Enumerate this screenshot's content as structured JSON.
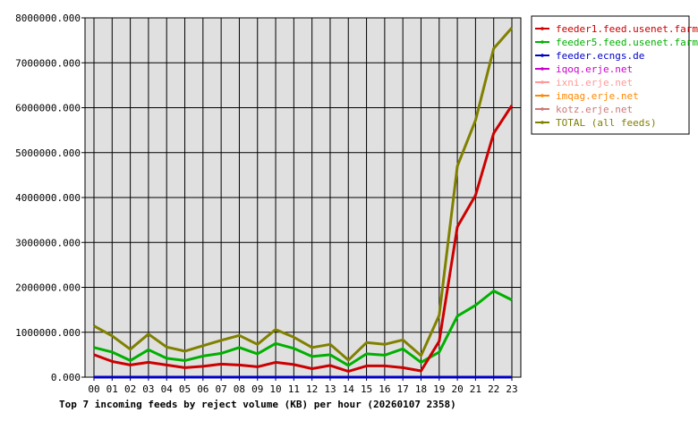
{
  "chart_data": {
    "type": "line",
    "title": "Top 7 incoming feeds by reject volume (KB) per hour (20260107 2358)",
    "xlabel": "",
    "ylabel": "",
    "categories": [
      "00",
      "01",
      "02",
      "03",
      "04",
      "05",
      "06",
      "07",
      "08",
      "09",
      "10",
      "11",
      "12",
      "13",
      "14",
      "15",
      "16",
      "17",
      "18",
      "19",
      "20",
      "21",
      "22",
      "23"
    ],
    "ylim": [
      0,
      8000000
    ],
    "yticks": [
      "0.000",
      "1000000.000",
      "2000000.000",
      "3000000.000",
      "4000000.000",
      "5000000.000",
      "6000000.000",
      "7000000.000",
      "8000000.000"
    ],
    "grid": true,
    "legend_position": "top-right",
    "series": [
      {
        "name": "feeder1.feed.usenet.farm",
        "color": "#cc0000",
        "values": [
          500000,
          350000,
          270000,
          330000,
          270000,
          210000,
          240000,
          290000,
          270000,
          230000,
          330000,
          280000,
          190000,
          260000,
          130000,
          250000,
          250000,
          210000,
          140000,
          800000,
          3350000,
          4050000,
          5430000,
          6050000
        ]
      },
      {
        "name": "feeder5.feed.usenet.farm",
        "color": "#00b000",
        "values": [
          660000,
          560000,
          370000,
          610000,
          420000,
          370000,
          470000,
          530000,
          660000,
          520000,
          750000,
          640000,
          460000,
          500000,
          260000,
          520000,
          490000,
          630000,
          330000,
          560000,
          1360000,
          1600000,
          1920000,
          1720000
        ]
      },
      {
        "name": "feeder.ecngs.de",
        "color": "#0000cc",
        "values": [
          0,
          0,
          0,
          0,
          0,
          0,
          0,
          0,
          0,
          0,
          0,
          0,
          0,
          0,
          0,
          0,
          0,
          0,
          0,
          0,
          0,
          0,
          0,
          0
        ]
      },
      {
        "name": "iqoq.erje.net",
        "color": "#cc00cc",
        "values": [
          0,
          0,
          0,
          0,
          0,
          0,
          0,
          0,
          0,
          0,
          0,
          0,
          0,
          0,
          0,
          0,
          0,
          0,
          0,
          0,
          0,
          0,
          0,
          0
        ]
      },
      {
        "name": "ixni.erje.net",
        "color": "#ff9999",
        "values": [
          0,
          0,
          0,
          0,
          0,
          0,
          0,
          0,
          0,
          0,
          0,
          0,
          0,
          0,
          0,
          0,
          0,
          0,
          0,
          0,
          0,
          0,
          0,
          0
        ]
      },
      {
        "name": "imqag.erje.net",
        "color": "#ff8800",
        "values": [
          0,
          0,
          0,
          0,
          0,
          0,
          0,
          0,
          0,
          0,
          0,
          0,
          0,
          0,
          0,
          0,
          0,
          0,
          0,
          0,
          0,
          0,
          0,
          0
        ]
      },
      {
        "name": "kotz.erje.net",
        "color": "#cc7777",
        "values": [
          0,
          0,
          0,
          0,
          0,
          0,
          0,
          0,
          0,
          0,
          0,
          0,
          0,
          0,
          0,
          0,
          0,
          0,
          0,
          0,
          0,
          0,
          0,
          0
        ]
      },
      {
        "name": "TOTAL (all feeds)",
        "color": "#808000",
        "values": [
          1140000,
          920000,
          620000,
          960000,
          670000,
          580000,
          700000,
          820000,
          930000,
          730000,
          1060000,
          890000,
          660000,
          730000,
          380000,
          770000,
          730000,
          830000,
          480000,
          1380000,
          4700000,
          5720000,
          7320000,
          7780000
        ]
      }
    ]
  }
}
